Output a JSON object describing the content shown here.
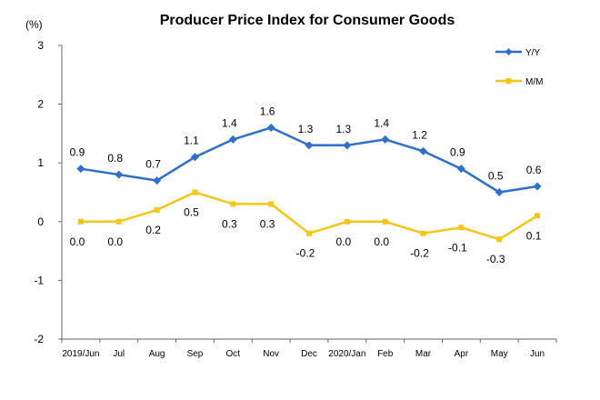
{
  "chart_data": {
    "type": "line",
    "title": "Producer Price Index for Consumer Goods",
    "unit_label": "(%)",
    "categories": [
      "2019/Jun",
      "Jul",
      "Aug",
      "Sep",
      "Oct",
      "Nov",
      "Dec",
      "2020/Jan",
      "Feb",
      "Mar",
      "Apr",
      "May",
      "Jun"
    ],
    "ylim": [
      -2,
      3
    ],
    "yticks": [
      3,
      2,
      1,
      0,
      -1,
      -2
    ],
    "grid": false,
    "legend_position": "top-right",
    "series": [
      {
        "name": "Y/Y",
        "color": "#2F6FCB",
        "marker": "diamond",
        "values": [
          0.9,
          0.8,
          0.7,
          1.1,
          1.4,
          1.6,
          1.3,
          1.3,
          1.4,
          1.2,
          0.9,
          0.5,
          0.6
        ],
        "labels": [
          "0.9",
          "0.8",
          "0.7",
          "1.1",
          "1.4",
          "1.6",
          "1.3",
          "1.3",
          "1.4",
          "1.2",
          "0.9",
          "0.5",
          "0.6"
        ]
      },
      {
        "name": "M/M",
        "color": "#F5C518",
        "marker": "square",
        "values": [
          0.0,
          0.0,
          0.2,
          0.5,
          0.3,
          0.3,
          -0.2,
          0.0,
          0.0,
          -0.2,
          -0.1,
          -0.3,
          0.1
        ],
        "labels": [
          "0.0",
          "0.0",
          "0.2",
          "0.5",
          "0.3",
          "0.3",
          "-0.2",
          "0.0",
          "0.0",
          "-0.2",
          "-0.1",
          "-0.3",
          "0.1"
        ]
      }
    ]
  }
}
